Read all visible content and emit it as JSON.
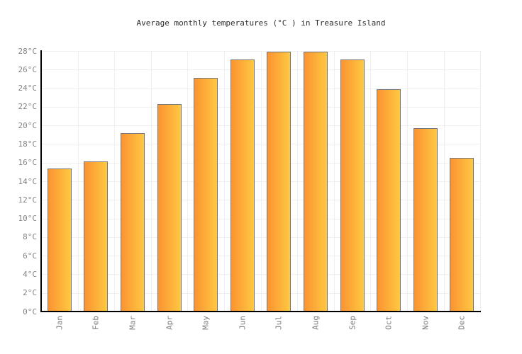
{
  "chart_data": {
    "type": "bar",
    "title": "Average monthly temperatures (°C ) in Treasure Island",
    "categories": [
      "Jan",
      "Feb",
      "Mar",
      "Apr",
      "May",
      "Jun",
      "Jul",
      "Aug",
      "Sep",
      "Oct",
      "Nov",
      "Dec"
    ],
    "values": [
      15.4,
      16.1,
      19.2,
      22.3,
      25.1,
      27.1,
      27.9,
      27.9,
      27.1,
      23.9,
      19.7,
      16.5
    ],
    "unit": "°C",
    "xlabel": "",
    "ylabel": "",
    "ylim": [
      0,
      28
    ],
    "ytick_step": 2,
    "ytick_labels": [
      "0°C",
      "2°C",
      "4°C",
      "6°C",
      "8°C",
      "10°C",
      "12°C",
      "14°C",
      "16°C",
      "18°C",
      "20°C",
      "22°C",
      "24°C",
      "26°C",
      "28°C"
    ],
    "grid": true,
    "legend": false,
    "colors": {
      "bar_gradient_left": "#fb9332",
      "bar_gradient_right": "#ffc841",
      "bar_border": "#77777f",
      "axis": "#000000",
      "gridline": "#f0f0f0",
      "tick_label": "#848484",
      "title_text": "#2b2b2b"
    }
  }
}
